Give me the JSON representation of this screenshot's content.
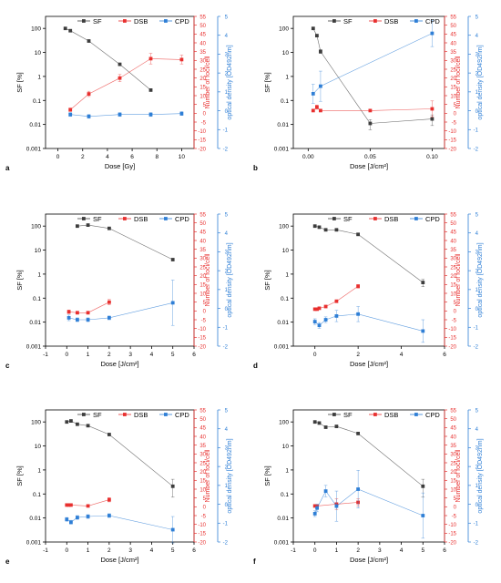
{
  "colors": {
    "sf": "#3d3d3d",
    "dsb": "#e8302f",
    "cpd": "#2f7fd6",
    "axis": "#000000"
  },
  "chart_data": [
    {
      "panel_label": "a",
      "type": "line",
      "xlabel": "Dose [Gy]",
      "ylabel_left": "SF [%]",
      "ylabel_red": "Number of foci/cell",
      "ylabel_blue": "optical density [OD492nm]",
      "legend": [
        "SF",
        "DSB",
        "CPD"
      ],
      "legend_position": "top-right",
      "xlim": [
        -1,
        11
      ],
      "xticks": [
        0,
        2,
        4,
        6,
        8,
        10
      ],
      "xtick_labels": [
        "0",
        "2",
        "4",
        "6",
        "8",
        "10"
      ],
      "series": [
        {
          "name": "SF",
          "axis": "sf",
          "x": [
            0.6,
            1,
            2.5,
            5,
            7.5
          ],
          "y": [
            100,
            80,
            30,
            3.2,
            0.27
          ]
        },
        {
          "name": "DSB",
          "axis": "dsb",
          "x": [
            1,
            2.5,
            5,
            7.5,
            10
          ],
          "y": [
            2,
            11,
            20,
            31,
            30.5
          ],
          "err": [
            1,
            1.5,
            2,
            3,
            2.5
          ]
        },
        {
          "name": "CPD",
          "axis": "cpd",
          "x": [
            1,
            2.5,
            5,
            7.5,
            10
          ],
          "y": [
            -0.2,
            -0.3,
            -0.2,
            -0.2,
            -0.15
          ],
          "err": [
            0.1,
            0.1,
            0.1,
            0.1,
            0.1
          ]
        }
      ]
    },
    {
      "panel_label": "b",
      "type": "line",
      "xlabel": "Dose [J/cm²]",
      "ylabel_left": "SF [%]",
      "ylabel_red": "Number of foci/cell",
      "ylabel_blue": "optical density [OD492nm]",
      "legend": [
        "SF",
        "DSB",
        "CPD"
      ],
      "legend_position": "top-right",
      "xlim": [
        -0.012,
        0.11
      ],
      "xticks": [
        0,
        0.05,
        0.1
      ],
      "xtick_labels": [
        "0.00",
        "0.05",
        "0.10"
      ],
      "series": [
        {
          "name": "SF",
          "axis": "sf",
          "x": [
            0.004,
            0.007,
            0.01,
            0.05,
            0.1
          ],
          "y": [
            100,
            50,
            11,
            0.011,
            0.017
          ],
          "err": [
            0,
            0,
            2,
            0.005,
            0.008
          ]
        },
        {
          "name": "DSB",
          "axis": "dsb",
          "x": [
            0.004,
            0.007,
            0.01,
            0.05,
            0.1
          ],
          "y": [
            1.5,
            3.5,
            1.5,
            1.5,
            2.5
          ],
          "err": [
            0.5,
            1.2,
            0.6,
            0.6,
            4.5
          ]
        },
        {
          "name": "CPD",
          "axis": "cpd",
          "x": [
            0.004,
            0.01,
            0.1
          ],
          "y": [
            0.9,
            1.3,
            4.1
          ],
          "err": [
            0.5,
            0.8,
            0.7
          ]
        }
      ]
    },
    {
      "panel_label": "c",
      "type": "line",
      "xlabel": "Dose [J/cm²]",
      "ylabel_left": "SF [%]",
      "ylabel_red": "Number of foci/cell",
      "ylabel_blue": "optical density [OD492nm]",
      "legend": [
        "SF",
        "DSB",
        "CPD"
      ],
      "legend_position": "top-right",
      "xlim": [
        -1,
        6
      ],
      "xticks": [
        -1,
        0,
        1,
        2,
        3,
        4,
        5,
        6
      ],
      "xtick_labels": [
        "-1",
        "0",
        "1",
        "2",
        "3",
        "4",
        "5",
        "6"
      ],
      "series": [
        {
          "name": "SF",
          "axis": "sf",
          "x": [
            0.5,
            1,
            2,
            5
          ],
          "y": [
            100,
            110,
            80,
            4
          ]
        },
        {
          "name": "DSB",
          "axis": "dsb",
          "x": [
            0.1,
            0.5,
            1,
            2
          ],
          "y": [
            -0.5,
            -1,
            -1,
            5
          ],
          "err": [
            1,
            0.8,
            0.8,
            1.5
          ]
        },
        {
          "name": "CPD",
          "axis": "cpd",
          "x": [
            0.1,
            0.5,
            1,
            2,
            5
          ],
          "y": [
            -0.5,
            -0.6,
            -0.6,
            -0.5,
            0.3
          ],
          "err": [
            0.15,
            0.1,
            0.1,
            0.1,
            1.2
          ]
        }
      ]
    },
    {
      "panel_label": "d",
      "type": "line",
      "xlabel": "Dose [J/cm²]",
      "ylabel_left": "SF [%]",
      "ylabel_red": "Number of foci/cell",
      "ylabel_blue": "optical density [OD492nm]",
      "legend": [
        "SF",
        "DSB",
        "CPD"
      ],
      "legend_position": "top-right",
      "xlim": [
        -1,
        6
      ],
      "xticks": [
        0,
        2,
        4,
        6
      ],
      "xtick_labels": [
        "0",
        "2",
        "4",
        "6"
      ],
      "series": [
        {
          "name": "SF",
          "axis": "sf",
          "x": [
            0,
            0.2,
            0.5,
            1,
            2,
            5
          ],
          "y": [
            100,
            90,
            70,
            70,
            45,
            0.45
          ],
          "err": [
            0,
            0,
            0,
            0,
            5,
            0.15
          ]
        },
        {
          "name": "DSB",
          "axis": "dsb",
          "x": [
            0,
            0.1,
            0.2,
            0.5,
            1,
            2
          ],
          "y": [
            1,
            1,
            1.5,
            2.5,
            5.5,
            14
          ],
          "err": [
            0.3,
            0.3,
            0.3,
            0.5,
            0.8,
            1
          ]
        },
        {
          "name": "CPD",
          "axis": "cpd",
          "x": [
            0,
            0.2,
            0.5,
            1,
            2,
            5
          ],
          "y": [
            -0.7,
            -0.9,
            -0.6,
            -0.4,
            -0.3,
            -1.2
          ],
          "err": [
            0.15,
            0.15,
            0.15,
            0.3,
            0.4,
            0.6
          ]
        }
      ]
    },
    {
      "panel_label": "e",
      "type": "line",
      "xlabel": "Dose [J/cm²]",
      "ylabel_left": "SF [%]",
      "ylabel_red": "Number of foci/cell",
      "ylabel_blue": "optical density [OD492nm]",
      "legend": [
        "SF",
        "DSB",
        "CPD"
      ],
      "legend_position": "top-right",
      "xlim": [
        -1,
        6
      ],
      "xticks": [
        -1,
        0,
        1,
        2,
        3,
        4,
        5,
        6
      ],
      "xtick_labels": [
        "-1",
        "0",
        "1",
        "2",
        "3",
        "4",
        "5",
        "6"
      ],
      "series": [
        {
          "name": "SF",
          "axis": "sf",
          "x": [
            0,
            0.2,
            0.5,
            1,
            2,
            5
          ],
          "y": [
            100,
            110,
            80,
            70,
            30,
            0.21
          ],
          "err": [
            0,
            0,
            0,
            0,
            0,
            0.2
          ]
        },
        {
          "name": "DSB",
          "axis": "dsb",
          "x": [
            0,
            0.1,
            0.2,
            1,
            2
          ],
          "y": [
            1,
            1,
            1,
            0.5,
            4
          ],
          "err": [
            0.2,
            0.2,
            0.2,
            0.3,
            1.2
          ]
        },
        {
          "name": "CPD",
          "axis": "cpd",
          "x": [
            0,
            0.2,
            0.5,
            1,
            2,
            5
          ],
          "y": [
            -0.8,
            -0.95,
            -0.7,
            -0.65,
            -0.6,
            -1.35
          ],
          "err": [
            0.1,
            0.1,
            0.1,
            0.1,
            0.1,
            0.7
          ]
        }
      ]
    },
    {
      "panel_label": "f",
      "type": "line",
      "xlabel": "Dose [J/cm²]",
      "ylabel_left": "SF [%]",
      "ylabel_red": "Number of foci/cell",
      "ylabel_blue": "optical density [OD492nm]",
      "legend": [
        "SF",
        "DSB",
        "CPD"
      ],
      "legend_position": "top-right",
      "xlim": [
        -1,
        6
      ],
      "xticks": [
        -1,
        0,
        1,
        2,
        3,
        4,
        5,
        6
      ],
      "xtick_labels": [
        "-1",
        "0",
        "1",
        "2",
        "3",
        "4",
        "5",
        "6"
      ],
      "series": [
        {
          "name": "SF",
          "axis": "sf",
          "x": [
            0,
            0.2,
            0.5,
            1,
            2,
            5
          ],
          "y": [
            100,
            90,
            60,
            65,
            33,
            0.21
          ],
          "err": [
            0,
            0,
            0,
            0,
            0,
            0.2
          ]
        },
        {
          "name": "DSB",
          "axis": "dsb",
          "x": [
            0,
            0.1,
            1,
            2
          ],
          "y": [
            0.5,
            0.5,
            1.5,
            2.5
          ],
          "err": [
            0.5,
            0.5,
            3,
            2
          ]
        },
        {
          "name": "CPD",
          "axis": "cpd",
          "x": [
            0,
            0.1,
            0.5,
            1,
            2,
            5
          ],
          "y": [
            -0.5,
            -0.2,
            0.7,
            -0.1,
            0.8,
            -0.6
          ],
          "err": [
            0.15,
            0.2,
            0.3,
            0.8,
            1,
            1.2
          ]
        }
      ]
    }
  ]
}
